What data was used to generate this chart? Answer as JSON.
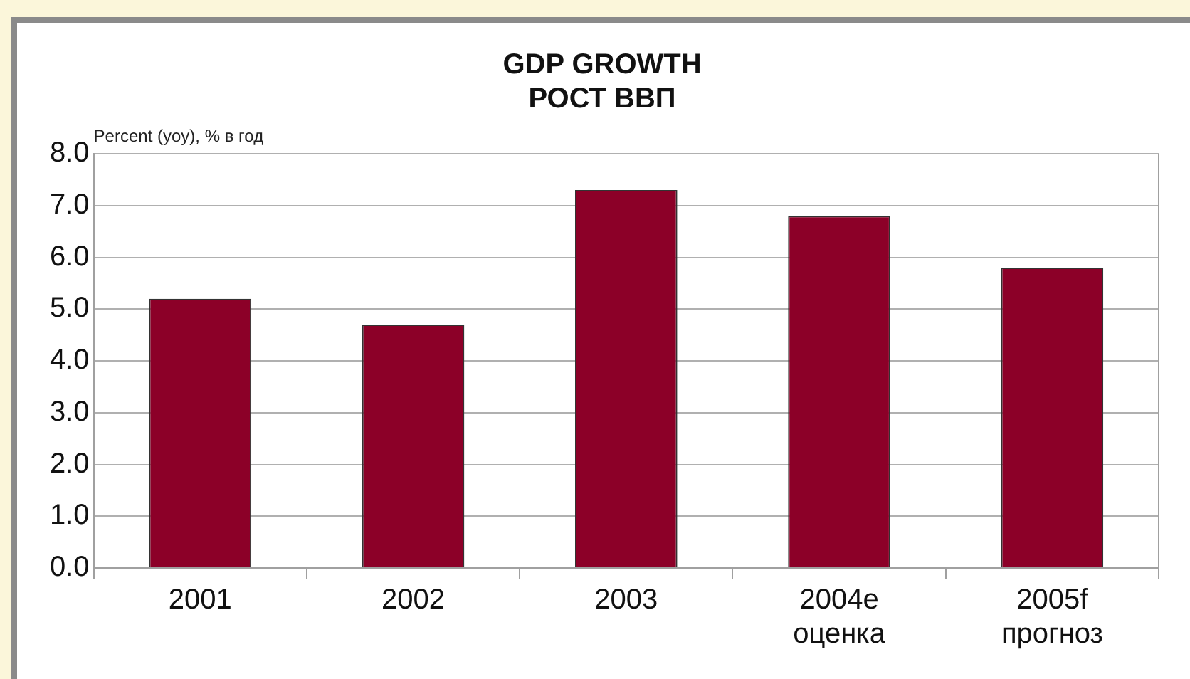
{
  "chart_data": {
    "type": "bar",
    "title": "GDP GROWTH",
    "subtitle": "РОСТ ВВП",
    "ylabel": "Percent (yoy), % в год",
    "categories": [
      "2001",
      "2002",
      "2003",
      "2004e\nоценка",
      "2005f\nпрогноз"
    ],
    "values": [
      5.2,
      4.7,
      7.3,
      6.8,
      5.8
    ],
    "color": "#8c0028",
    "ylim": [
      0,
      8
    ],
    "yticks": [
      {
        "value": 0,
        "label": "0.0"
      },
      {
        "value": 1,
        "label": "1.0"
      },
      {
        "value": 2,
        "label": "2.0"
      },
      {
        "value": 3,
        "label": "3.0"
      },
      {
        "value": 4,
        "label": "4.0"
      },
      {
        "value": 5,
        "label": "5.0"
      },
      {
        "value": 6,
        "label": "6.0"
      },
      {
        "value": 7,
        "label": "7.0"
      },
      {
        "value": 8,
        "label": "8.0"
      }
    ],
    "grid": "y",
    "legend": false
  }
}
